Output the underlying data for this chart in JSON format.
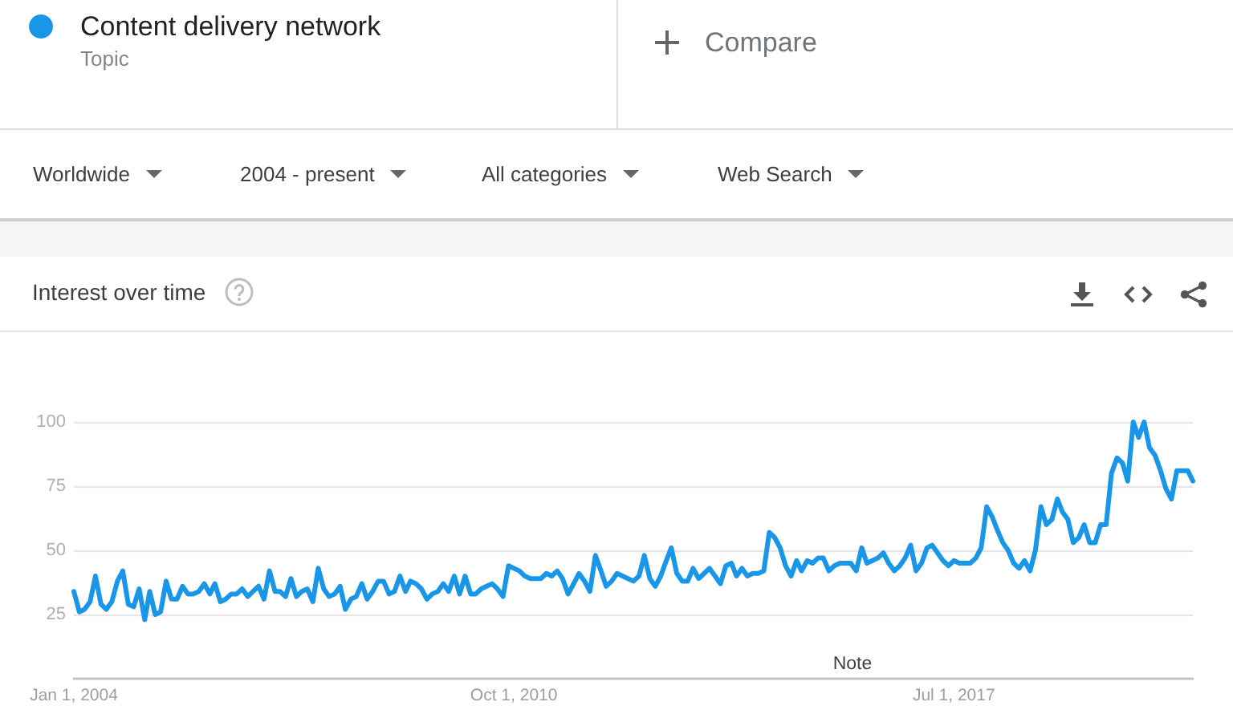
{
  "chart_data": {
    "type": "line",
    "title": "Interest over time",
    "legend": "top left",
    "grid": "y",
    "marker": "none",
    "line_style": "solid",
    "annotations": [
      "Topic",
      "Compare",
      "Worldwide",
      "2004 - present",
      "All categories",
      "Web Search",
      "Note"
    ],
    "xlim": [
      "2004-01",
      "2021-03"
    ],
    "xticks": [
      {
        "value": "2004-01-01",
        "label": "Jan 1, 2004"
      },
      {
        "value": "2010-10-01",
        "label": "Oct 1, 2010"
      },
      {
        "value": "2017-07-01",
        "label": "Jul 1, 2017"
      }
    ],
    "ylim": [
      0,
      100
    ],
    "yticks": [
      25,
      50,
      75,
      100
    ],
    "x": [
      "2004-01",
      "2004-02",
      "2004-03",
      "2004-04",
      "2004-05",
      "2004-06",
      "2004-07",
      "2004-08",
      "2004-09",
      "2004-10",
      "2004-11",
      "2004-12",
      "2005-01",
      "2005-02",
      "2005-03",
      "2005-04",
      "2005-05",
      "2005-06",
      "2005-07",
      "2005-08",
      "2005-09",
      "2005-10",
      "2005-11",
      "2005-12",
      "2006-01",
      "2006-02",
      "2006-03",
      "2006-04",
      "2006-05",
      "2006-06",
      "2006-07",
      "2006-08",
      "2006-09",
      "2006-10",
      "2006-11",
      "2006-12",
      "2007-01",
      "2007-02",
      "2007-03",
      "2007-04",
      "2007-05",
      "2007-06",
      "2007-07",
      "2007-08",
      "2007-09",
      "2007-10",
      "2007-11",
      "2007-12",
      "2008-01",
      "2008-02",
      "2008-03",
      "2008-04",
      "2008-05",
      "2008-06",
      "2008-07",
      "2008-08",
      "2008-09",
      "2008-10",
      "2008-11",
      "2008-12",
      "2009-01",
      "2009-02",
      "2009-03",
      "2009-04",
      "2009-05",
      "2009-06",
      "2009-07",
      "2009-08",
      "2009-09",
      "2009-10",
      "2009-11",
      "2009-12",
      "2010-01",
      "2010-02",
      "2010-03",
      "2010-04",
      "2010-05",
      "2010-06",
      "2010-07",
      "2010-08",
      "2010-09",
      "2010-10",
      "2010-11",
      "2010-12",
      "2011-01",
      "2011-02",
      "2011-03",
      "2011-04",
      "2011-05",
      "2011-06",
      "2011-07",
      "2011-08",
      "2011-09",
      "2011-10",
      "2011-11",
      "2011-12",
      "2012-01",
      "2012-02",
      "2012-03",
      "2012-04",
      "2012-05",
      "2012-06",
      "2012-07",
      "2012-08",
      "2012-09",
      "2012-10",
      "2012-11",
      "2012-12",
      "2013-01",
      "2013-02",
      "2013-03",
      "2013-04",
      "2013-05",
      "2013-06",
      "2013-07",
      "2013-08",
      "2013-09",
      "2013-10",
      "2013-11",
      "2013-12",
      "2014-01",
      "2014-02",
      "2014-03",
      "2014-04",
      "2014-05",
      "2014-06",
      "2014-07",
      "2014-08",
      "2014-09",
      "2014-10",
      "2014-11",
      "2014-12",
      "2015-01",
      "2015-02",
      "2015-03",
      "2015-04",
      "2015-05",
      "2015-06",
      "2015-07",
      "2015-08",
      "2015-09",
      "2015-10",
      "2015-11",
      "2015-12",
      "2016-01",
      "2016-02",
      "2016-03",
      "2016-04",
      "2016-05",
      "2016-06",
      "2016-07",
      "2016-08",
      "2016-09",
      "2016-10",
      "2016-11",
      "2016-12",
      "2017-01",
      "2017-02",
      "2017-03",
      "2017-04",
      "2017-05",
      "2017-06",
      "2017-07",
      "2017-08",
      "2017-09",
      "2017-10",
      "2017-11",
      "2017-12",
      "2018-01",
      "2018-02",
      "2018-03",
      "2018-04",
      "2018-05",
      "2018-06",
      "2018-07",
      "2018-08",
      "2018-09",
      "2018-10",
      "2018-11",
      "2018-12",
      "2019-01",
      "2019-02",
      "2019-03",
      "2019-04",
      "2019-05",
      "2019-06",
      "2019-07",
      "2019-08",
      "2019-09",
      "2019-10",
      "2019-11",
      "2019-12",
      "2020-01",
      "2020-02",
      "2020-03",
      "2020-04",
      "2020-05",
      "2020-06",
      "2020-07",
      "2020-08",
      "2020-09",
      "2020-10",
      "2020-11",
      "2020-12",
      "2021-01",
      "2021-02",
      "2021-03"
    ],
    "series": [
      {
        "name": "Content delivery network",
        "color": "#1a96e8",
        "values": [
          34,
          26,
          27,
          30,
          40,
          29,
          27,
          30,
          38,
          42,
          29,
          28,
          35,
          23,
          34,
          25,
          26,
          38,
          31,
          31,
          36,
          33,
          33,
          34,
          37,
          33,
          37,
          30,
          31,
          33,
          33,
          35,
          32,
          34,
          36,
          31,
          42,
          34,
          34,
          32,
          39,
          32,
          34,
          35,
          30,
          43,
          35,
          32,
          33,
          36,
          27,
          31,
          32,
          37,
          31,
          34,
          38,
          38,
          33,
          34,
          40,
          34,
          38,
          37,
          35,
          31,
          33,
          34,
          37,
          34,
          40,
          33,
          40,
          33,
          33,
          35,
          36,
          37,
          35,
          32,
          44,
          43,
          42,
          40,
          39,
          39,
          39,
          41,
          40,
          42,
          39,
          33,
          37,
          41,
          38,
          34,
          48,
          42,
          36,
          38,
          41,
          40,
          39,
          38,
          40,
          48,
          39,
          36,
          40,
          46,
          51,
          41,
          38,
          38,
          43,
          39,
          41,
          43,
          40,
          37,
          44,
          45,
          40,
          43,
          40,
          41,
          41,
          42,
          57,
          55,
          51,
          44,
          40,
          46,
          42,
          46,
          45,
          47,
          47,
          42,
          44,
          45,
          45,
          45,
          42,
          51,
          45,
          46,
          47,
          49,
          45,
          42,
          44,
          47,
          52,
          42,
          45,
          51,
          52,
          49,
          46,
          44,
          46,
          45,
          45,
          45,
          47,
          51,
          67,
          63,
          58,
          53,
          50,
          45,
          43,
          46,
          42,
          50,
          67,
          60,
          62,
          70,
          65,
          62,
          53,
          55,
          60,
          53,
          53,
          60,
          60,
          80,
          86,
          84,
          77,
          100,
          94,
          100,
          90,
          87,
          81,
          74,
          70,
          81,
          81,
          81,
          77
        ]
      }
    ]
  }
}
